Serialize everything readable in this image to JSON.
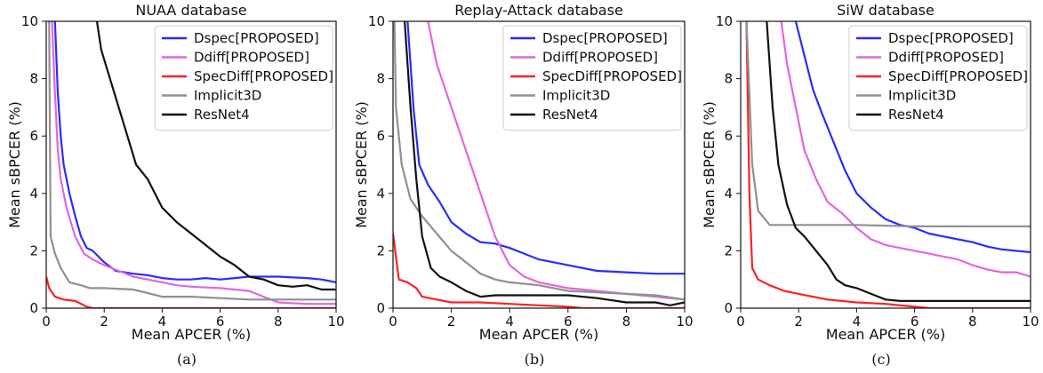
{
  "chart_data": [
    {
      "type": "line",
      "title": "NUAA database",
      "xlabel": "Mean APCER (%)",
      "ylabel": "Mean sBPCER (%)",
      "caption": "(a)",
      "xlim": [
        0,
        10
      ],
      "ylim": [
        0,
        10
      ],
      "xticks": [
        "0",
        "2",
        "4",
        "6",
        "8",
        "10"
      ],
      "yticks": [
        "0",
        "2",
        "4",
        "6",
        "8",
        "10"
      ],
      "legend_position": "top-right",
      "grid": false,
      "series": [
        {
          "name": "Dspec[PROPOSED]",
          "color": "#2b2bff",
          "points": [
            [
              0.3,
              10
            ],
            [
              0.4,
              7.5
            ],
            [
              0.5,
              6
            ],
            [
              0.6,
              5
            ],
            [
              0.8,
              4
            ],
            [
              1.0,
              3.2
            ],
            [
              1.2,
              2.5
            ],
            [
              1.4,
              2.1
            ],
            [
              1.6,
              2.0
            ],
            [
              2.0,
              1.6
            ],
            [
              2.4,
              1.3
            ],
            [
              3,
              1.2
            ],
            [
              3.5,
              1.15
            ],
            [
              4,
              1.05
            ],
            [
              4.5,
              1.0
            ],
            [
              5,
              1.0
            ],
            [
              5.5,
              1.05
            ],
            [
              6,
              1.0
            ],
            [
              6.5,
              1.05
            ],
            [
              7,
              1.1
            ],
            [
              8,
              1.1
            ],
            [
              9,
              1.05
            ],
            [
              9.5,
              1.0
            ],
            [
              10,
              0.9
            ]
          ]
        },
        {
          "name": "Ddiff[PROPOSED]",
          "color": "#e066e0",
          "points": [
            [
              0.2,
              10
            ],
            [
              0.3,
              7.5
            ],
            [
              0.4,
              5.5
            ],
            [
              0.5,
              4.5
            ],
            [
              0.7,
              3.5
            ],
            [
              1.0,
              2.5
            ],
            [
              1.3,
              1.9
            ],
            [
              1.6,
              1.7
            ],
            [
              2,
              1.5
            ],
            [
              2.5,
              1.3
            ],
            [
              3,
              1.1
            ],
            [
              4,
              0.9
            ],
            [
              4.5,
              0.8
            ],
            [
              5,
              0.75
            ],
            [
              6,
              0.7
            ],
            [
              7,
              0.6
            ],
            [
              7.5,
              0.4
            ],
            [
              8,
              0.2
            ],
            [
              9,
              0.15
            ],
            [
              10,
              0.15
            ]
          ]
        },
        {
          "name": "SpecDiff[PROPOSED]",
          "color": "#ff2020",
          "points": [
            [
              0,
              1.1
            ],
            [
              0.1,
              0.7
            ],
            [
              0.3,
              0.4
            ],
            [
              0.6,
              0.3
            ],
            [
              1.0,
              0.25
            ],
            [
              1.4,
              0.05
            ],
            [
              1.6,
              0
            ],
            [
              10,
              0
            ]
          ]
        },
        {
          "name": "Implicit3D",
          "color": "#909090",
          "points": [
            [
              0.1,
              10
            ],
            [
              0.15,
              2.5
            ],
            [
              0.3,
              1.9
            ],
            [
              0.5,
              1.4
            ],
            [
              0.8,
              0.9
            ],
            [
              1.2,
              0.8
            ],
            [
              1.5,
              0.7
            ],
            [
              2,
              0.7
            ],
            [
              3,
              0.65
            ],
            [
              4,
              0.4
            ],
            [
              5,
              0.4
            ],
            [
              6,
              0.35
            ],
            [
              7,
              0.3
            ],
            [
              8,
              0.3
            ],
            [
              9,
              0.3
            ],
            [
              10,
              0.3
            ]
          ]
        },
        {
          "name": "ResNet4",
          "color": "#111111",
          "points": [
            [
              1.75,
              10
            ],
            [
              1.9,
              9.0
            ],
            [
              2.2,
              8.0
            ],
            [
              2.5,
              7.0
            ],
            [
              2.8,
              6.0
            ],
            [
              3.1,
              5.0
            ],
            [
              3.5,
              4.5
            ],
            [
              4,
              3.5
            ],
            [
              4.5,
              3.0
            ],
            [
              5,
              2.6
            ],
            [
              5.5,
              2.2
            ],
            [
              6,
              1.8
            ],
            [
              6.5,
              1.5
            ],
            [
              7,
              1.1
            ],
            [
              7.5,
              1.0
            ],
            [
              8,
              0.8
            ],
            [
              8.5,
              0.75
            ],
            [
              9,
              0.8
            ],
            [
              9.5,
              0.65
            ],
            [
              10,
              0.65
            ]
          ]
        }
      ]
    },
    {
      "type": "line",
      "title": "Replay-Attack database",
      "xlabel": "Mean APCER (%)",
      "ylabel": "Mean sBPCER (%)",
      "caption": "(b)",
      "xlim": [
        0,
        10
      ],
      "ylim": [
        0,
        10
      ],
      "xticks": [
        "0",
        "2",
        "4",
        "6",
        "8",
        "10"
      ],
      "yticks": [
        "0",
        "2",
        "4",
        "6",
        "8",
        "10"
      ],
      "legend_position": "top-right",
      "grid": false,
      "series": [
        {
          "name": "Dspec[PROPOSED]",
          "color": "#2b2bff",
          "points": [
            [
              0.5,
              10
            ],
            [
              0.7,
              7
            ],
            [
              0.9,
              5
            ],
            [
              1.2,
              4.3
            ],
            [
              1.6,
              3.7
            ],
            [
              2,
              3.0
            ],
            [
              2.5,
              2.6
            ],
            [
              3,
              2.3
            ],
            [
              3.5,
              2.25
            ],
            [
              4,
              2.1
            ],
            [
              4.5,
              1.9
            ],
            [
              5,
              1.7
            ],
            [
              6,
              1.5
            ],
            [
              7,
              1.3
            ],
            [
              8,
              1.25
            ],
            [
              9,
              1.2
            ],
            [
              10,
              1.2
            ]
          ]
        },
        {
          "name": "Ddiff[PROPOSED]",
          "color": "#e066e0",
          "points": [
            [
              1.2,
              10
            ],
            [
              1.5,
              8.5
            ],
            [
              2,
              7
            ],
            [
              2.5,
              5.5
            ],
            [
              3,
              4
            ],
            [
              3.5,
              2.5
            ],
            [
              4,
              1.5
            ],
            [
              4.5,
              1.1
            ],
            [
              5,
              0.9
            ],
            [
              6,
              0.7
            ],
            [
              7,
              0.6
            ],
            [
              8,
              0.5
            ],
            [
              9,
              0.4
            ],
            [
              10,
              0.3
            ]
          ]
        },
        {
          "name": "SpecDiff[PROPOSED]",
          "color": "#ff2020",
          "points": [
            [
              0,
              2.6
            ],
            [
              0.2,
              1.0
            ],
            [
              0.5,
              0.9
            ],
            [
              0.8,
              0.7
            ],
            [
              1.0,
              0.4
            ],
            [
              1.5,
              0.3
            ],
            [
              2,
              0.2
            ],
            [
              3,
              0.2
            ],
            [
              4,
              0.15
            ],
            [
              5,
              0.1
            ],
            [
              6,
              0.05
            ],
            [
              6.5,
              0
            ],
            [
              10,
              0
            ]
          ]
        },
        {
          "name": "Implicit3D",
          "color": "#909090",
          "points": [
            [
              0.05,
              10
            ],
            [
              0.1,
              7
            ],
            [
              0.3,
              5
            ],
            [
              0.6,
              3.8
            ],
            [
              1.0,
              3.2
            ],
            [
              1.5,
              2.6
            ],
            [
              2,
              2.0
            ],
            [
              2.5,
              1.6
            ],
            [
              3,
              1.2
            ],
            [
              3.5,
              1.0
            ],
            [
              4,
              0.9
            ],
            [
              5,
              0.8
            ],
            [
              6,
              0.6
            ],
            [
              7,
              0.55
            ],
            [
              8,
              0.5
            ],
            [
              9,
              0.45
            ],
            [
              10,
              0.3
            ]
          ]
        },
        {
          "name": "ResNet4",
          "color": "#111111",
          "points": [
            [
              0.4,
              10
            ],
            [
              0.6,
              7
            ],
            [
              0.8,
              4.5
            ],
            [
              1.0,
              2.5
            ],
            [
              1.3,
              1.4
            ],
            [
              1.6,
              1.1
            ],
            [
              2,
              0.9
            ],
            [
              2.5,
              0.6
            ],
            [
              3,
              0.4
            ],
            [
              3.5,
              0.45
            ],
            [
              4,
              0.45
            ],
            [
              5,
              0.45
            ],
            [
              6,
              0.45
            ],
            [
              7,
              0.35
            ],
            [
              8,
              0.2
            ],
            [
              9,
              0.2
            ],
            [
              9.5,
              0.1
            ],
            [
              10,
              0.2
            ]
          ]
        }
      ]
    },
    {
      "type": "line",
      "title": "SiW database",
      "xlabel": "Mean APCER (%)",
      "ylabel": "Mean sBPCER (%)",
      "caption": "(c)",
      "xlim": [
        0,
        10
      ],
      "ylim": [
        0,
        10
      ],
      "xticks": [
        "0",
        "2",
        "4",
        "6",
        "8",
        "10"
      ],
      "yticks": [
        "0",
        "2",
        "4",
        "6",
        "8",
        "10"
      ],
      "legend_position": "top-right",
      "grid": false,
      "series": [
        {
          "name": "Dspec[PROPOSED]",
          "color": "#2b2bff",
          "points": [
            [
              1.9,
              10
            ],
            [
              2.2,
              8.8
            ],
            [
              2.5,
              7.6
            ],
            [
              2.8,
              6.8
            ],
            [
              3.2,
              5.8
            ],
            [
              3.6,
              4.8
            ],
            [
              4,
              4.0
            ],
            [
              4.5,
              3.5
            ],
            [
              5,
              3.1
            ],
            [
              5.5,
              2.9
            ],
            [
              6,
              2.8
            ],
            [
              6.5,
              2.6
            ],
            [
              7,
              2.5
            ],
            [
              7.5,
              2.4
            ],
            [
              8,
              2.3
            ],
            [
              8.5,
              2.15
            ],
            [
              9,
              2.05
            ],
            [
              9.5,
              2.0
            ],
            [
              10,
              1.95
            ]
          ]
        },
        {
          "name": "Ddiff[PROPOSED]",
          "color": "#e066e0",
          "points": [
            [
              1.4,
              10
            ],
            [
              1.6,
              8.5
            ],
            [
              1.9,
              7
            ],
            [
              2.2,
              5.5
            ],
            [
              2.6,
              4.5
            ],
            [
              3,
              3.7
            ],
            [
              3.5,
              3.3
            ],
            [
              4,
              2.8
            ],
            [
              4.5,
              2.4
            ],
            [
              5,
              2.2
            ],
            [
              5.5,
              2.1
            ],
            [
              6,
              2.0
            ],
            [
              6.5,
              1.9
            ],
            [
              7,
              1.8
            ],
            [
              7.5,
              1.7
            ],
            [
              8,
              1.5
            ],
            [
              8.5,
              1.35
            ],
            [
              9,
              1.25
            ],
            [
              9.5,
              1.25
            ],
            [
              10,
              1.1
            ]
          ]
        },
        {
          "name": "SpecDiff[PROPOSED]",
          "color": "#ff2020",
          "points": [
            [
              0.2,
              10
            ],
            [
              0.3,
              4
            ],
            [
              0.4,
              1.4
            ],
            [
              0.6,
              1.0
            ],
            [
              1.0,
              0.8
            ],
            [
              1.5,
              0.6
            ],
            [
              2,
              0.5
            ],
            [
              3,
              0.3
            ],
            [
              4,
              0.2
            ],
            [
              5,
              0.15
            ],
            [
              6,
              0.05
            ],
            [
              6.5,
              0
            ],
            [
              10,
              0
            ]
          ]
        },
        {
          "name": "Implicit3D",
          "color": "#909090",
          "points": [
            [
              0.2,
              10
            ],
            [
              0.4,
              5
            ],
            [
              0.6,
              3.4
            ],
            [
              1.0,
              2.9
            ],
            [
              1.5,
              2.9
            ],
            [
              2,
              2.9
            ],
            [
              4,
              2.9
            ],
            [
              6,
              2.85
            ],
            [
              8,
              2.85
            ],
            [
              10,
              2.85
            ]
          ]
        },
        {
          "name": "ResNet4",
          "color": "#111111",
          "points": [
            [
              0.9,
              10
            ],
            [
              1.1,
              7
            ],
            [
              1.3,
              5
            ],
            [
              1.6,
              3.6
            ],
            [
              1.9,
              2.8
            ],
            [
              2.2,
              2.5
            ],
            [
              2.6,
              2.0
            ],
            [
              3,
              1.5
            ],
            [
              3.3,
              1.0
            ],
            [
              3.6,
              0.8
            ],
            [
              4,
              0.7
            ],
            [
              4.5,
              0.5
            ],
            [
              5,
              0.3
            ],
            [
              5.5,
              0.25
            ],
            [
              6,
              0.25
            ],
            [
              7,
              0.25
            ],
            [
              8,
              0.25
            ],
            [
              9,
              0.25
            ],
            [
              10,
              0.25
            ]
          ]
        }
      ]
    }
  ]
}
